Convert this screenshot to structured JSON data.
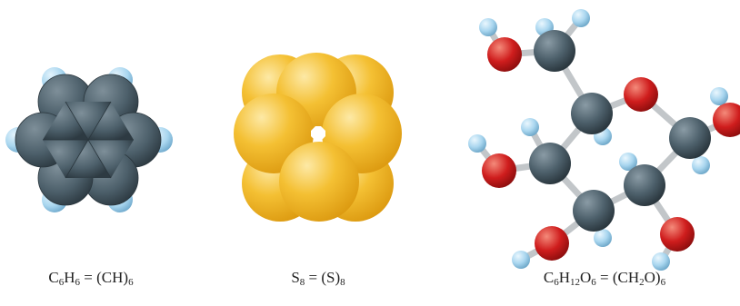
{
  "molecules": {
    "benzene": {
      "formula_parts": [
        "C",
        "6",
        "H",
        "6",
        " = (CH)",
        "6"
      ],
      "label": "C6H6 = (CH)6"
    },
    "sulfur": {
      "formula_parts": [
        "S",
        "8",
        " = (S)",
        "8"
      ],
      "label": "S8 = (S)8"
    },
    "glucose": {
      "formula_parts": [
        "C",
        "6",
        "H",
        "12",
        "O",
        "6",
        " = (CH",
        "2",
        "O)",
        "6"
      ],
      "label": "C6H12O6 = (CH2O)6"
    }
  },
  "colors": {
    "carbon": "#4d606b",
    "hydrogen": "#a9d6ef",
    "sulfur": "#f1b31b",
    "oxygen": "#cf1d1d",
    "bond": "#c9ccce"
  }
}
